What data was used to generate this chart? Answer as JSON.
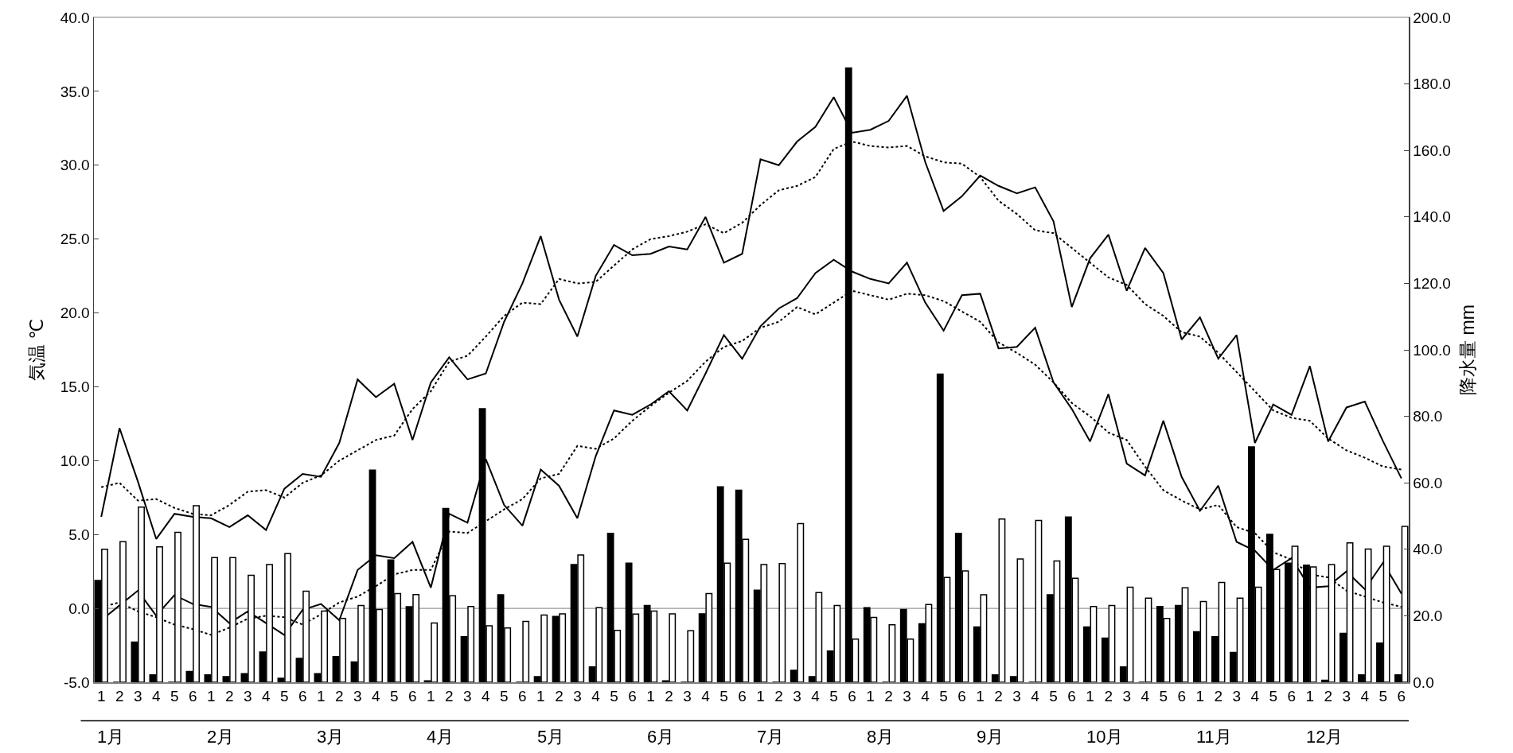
{
  "chart_data": {
    "type": "bar",
    "ylabel": "気温 ℃",
    "y2label": "降水量 mm",
    "categories": [
      "1",
      "2",
      "3",
      "4",
      "5",
      "6",
      "1",
      "2",
      "3",
      "4",
      "5",
      "6",
      "1",
      "2",
      "3",
      "4",
      "5",
      "6",
      "1",
      "2",
      "3",
      "4",
      "5",
      "6",
      "1",
      "2",
      "3",
      "4",
      "5",
      "6",
      "1",
      "2",
      "3",
      "4",
      "5",
      "6",
      "1",
      "2",
      "3",
      "4",
      "5",
      "6",
      "1",
      "2",
      "3",
      "4",
      "5",
      "6",
      "1",
      "2",
      "3",
      "4",
      "5",
      "6",
      "1",
      "2",
      "3",
      "4",
      "5",
      "6",
      "1",
      "2",
      "3",
      "4",
      "5",
      "6",
      "1",
      "2",
      "3",
      "4",
      "5",
      "6"
    ],
    "annotations": [
      "1月",
      "2月",
      "3月",
      "4月",
      "5月",
      "6月",
      "7月",
      "8月",
      "9月",
      "10月",
      "11月",
      "12月"
    ],
    "series": [
      {
        "axis": "y2",
        "color": "#000000",
        "values": [
          30.6,
          0,
          12.1,
          2.2,
          0,
          3.2,
          2.2,
          1.7,
          2.6,
          9.1,
          1.2,
          7.2,
          2.6,
          7.7,
          6.1,
          63.8,
          36.8,
          22.7,
          0.4,
          52.3,
          13.7,
          82.3,
          26.3,
          0,
          1.7,
          19.8,
          35.4,
          4.6,
          44.8,
          35.8,
          23.1,
          0.4,
          0,
          20.6,
          58.8,
          57.8,
          27.7,
          0,
          3.6,
          1.7,
          9.4,
          184.8,
          22.4,
          0,
          21.9,
          17.6,
          92.7,
          44.8,
          16.6,
          2.2,
          1.7,
          0,
          26.3,
          49.7,
          16.6,
          13.3,
          4.6,
          0,
          22.8,
          23.1,
          15.2,
          13.7,
          9.0,
          70.8,
          44.5,
          35.8,
          35.2,
          0.6,
          14.7,
          2.2,
          11.8,
          2.2
        ]
      },
      {
        "axis": "y2",
        "color": "#ffffff",
        "values": [
          40.0,
          42.3,
          52.7,
          40.7,
          45.1,
          53.1,
          37.5,
          37.5,
          32.2,
          35.4,
          38.7,
          27.4,
          21.4,
          19.2,
          23.1,
          21.9,
          26.7,
          26.4,
          17.8,
          26.0,
          22.8,
          17.0,
          16.3,
          18.3,
          20.2,
          20.6,
          38.3,
          22.4,
          15.6,
          20.5,
          21.4,
          20.6,
          15.5,
          26.7,
          35.8,
          43.0,
          35.4,
          35.7,
          47.7,
          27.0,
          23.1,
          13.0,
          19.5,
          17.3,
          13.0,
          23.4,
          31.5,
          33.5,
          26.3,
          49.1,
          37.1,
          48.7,
          36.5,
          31.3,
          22.8,
          23.1,
          28.6,
          25.3,
          19.2,
          28.4,
          24.3,
          30.0,
          25.3,
          28.6,
          33.9,
          40.9,
          34.7,
          35.4,
          41.9,
          40.1,
          40.9,
          46.9
        ]
      },
      {
        "type": "line",
        "axis": "y",
        "color": "#000000",
        "line_style": "solid",
        "values": [
          6.2,
          12.2,
          8.6,
          4.7,
          6.4,
          6.2,
          6.1,
          5.5,
          6.3,
          5.3,
          8.1,
          9.1,
          8.9,
          11.2,
          15.5,
          14.3,
          15.2,
          11.4,
          15.3,
          17.0,
          15.5,
          15.9,
          19.4,
          22.0,
          25.2,
          20.9,
          18.4,
          22.5,
          24.6,
          23.9,
          24.0,
          24.5,
          24.3,
          26.5,
          23.4,
          24.0,
          30.4,
          30.0,
          31.6,
          32.6,
          34.6,
          32.2,
          32.4,
          33.0,
          34.7,
          30.2,
          26.9,
          27.9,
          29.3,
          28.6,
          28.1,
          28.5,
          26.2,
          20.4,
          23.7,
          25.3,
          21.5,
          24.4,
          22.7,
          18.2,
          19.7,
          16.9,
          18.5,
          11.2,
          13.8,
          13.1,
          16.4,
          11.3,
          13.6,
          14.0,
          11.3,
          8.8
        ]
      },
      {
        "type": "line",
        "axis": "y",
        "color": "#000000",
        "line_style": "dotted",
        "values": [
          8.2,
          8.5,
          7.3,
          7.4,
          6.8,
          6.4,
          6.3,
          7.0,
          7.9,
          8.0,
          7.5,
          8.5,
          9.0,
          10.0,
          10.7,
          11.4,
          11.7,
          13.5,
          14.7,
          16.7,
          17.1,
          18.4,
          19.8,
          20.7,
          20.6,
          22.3,
          22.0,
          22.1,
          23.2,
          24.3,
          25.0,
          25.2,
          25.5,
          26.0,
          25.4,
          26.1,
          27.3,
          28.3,
          28.6,
          29.2,
          31.1,
          31.6,
          31.3,
          31.2,
          31.3,
          30.6,
          30.2,
          30.1,
          29.2,
          27.6,
          26.7,
          25.6,
          25.4,
          24.4,
          23.4,
          22.4,
          21.9,
          20.6,
          19.8,
          18.7,
          18.4,
          17.3,
          16.0,
          14.7,
          13.4,
          12.9,
          12.7,
          11.5,
          10.7,
          10.2,
          9.6,
          9.4
        ]
      },
      {
        "type": "line",
        "axis": "y",
        "color": "#000000",
        "line_style": "solid",
        "values": [
          -0.8,
          0.2,
          1.2,
          -0.5,
          0.9,
          0.3,
          0.1,
          -1.0,
          -0.2,
          -1.0,
          -1.8,
          -0.1,
          0.3,
          -0.8,
          2.6,
          3.6,
          3.4,
          4.5,
          1.4,
          6.4,
          5.8,
          10.1,
          7.0,
          5.6,
          9.4,
          8.3,
          6.1,
          10.3,
          13.4,
          13.1,
          13.8,
          14.7,
          13.4,
          15.9,
          18.5,
          16.9,
          19.1,
          20.3,
          21.0,
          22.7,
          23.6,
          22.8,
          22.3,
          22.0,
          23.4,
          20.7,
          18.8,
          21.2,
          21.3,
          17.6,
          17.7,
          19.0,
          15.3,
          13.5,
          11.3,
          14.5,
          9.8,
          9.0,
          12.7,
          8.9,
          6.6,
          8.3,
          4.5,
          3.9,
          2.6,
          3.4,
          1.4,
          1.5,
          2.5,
          1.3,
          3.1,
          1.0
        ]
      },
      {
        "type": "line",
        "axis": "y",
        "color": "#000000",
        "line_style": "dotted",
        "values": [
          0.1,
          0.4,
          -0.2,
          -0.6,
          -1.1,
          -1.4,
          -1.8,
          -1.3,
          -0.7,
          -0.5,
          -0.6,
          -1.1,
          -0.4,
          0.4,
          0.8,
          1.5,
          2.3,
          2.6,
          2.6,
          5.2,
          5.1,
          5.9,
          6.7,
          7.4,
          8.8,
          9.1,
          11.0,
          10.8,
          11.5,
          12.7,
          13.7,
          14.6,
          15.4,
          16.7,
          17.7,
          18.1,
          19.0,
          19.4,
          20.4,
          19.9,
          20.7,
          21.5,
          21.2,
          20.9,
          21.3,
          21.2,
          20.8,
          20.1,
          19.4,
          18.0,
          17.3,
          16.5,
          15.3,
          13.9,
          13.0,
          11.9,
          11.4,
          9.6,
          8.0,
          7.3,
          6.7,
          7.0,
          5.5,
          5.1,
          3.8,
          3.3,
          2.3,
          2.1,
          1.2,
          0.8,
          0.4,
          0.1
        ]
      }
    ],
    "ylim": [
      -5,
      40
    ],
    "yticks": [
      {
        "value": -5,
        "label": "-5.0"
      },
      {
        "value": 0,
        "label": "0.0"
      },
      {
        "value": 5,
        "label": "5.0"
      },
      {
        "value": 10,
        "label": "10.0"
      },
      {
        "value": 15,
        "label": "15.0"
      },
      {
        "value": 20,
        "label": "20.0"
      },
      {
        "value": 25,
        "label": "25.0"
      },
      {
        "value": 30,
        "label": "30.0"
      },
      {
        "value": 35,
        "label": "35.0"
      },
      {
        "value": 40,
        "label": "40.0"
      }
    ],
    "y2lim": [
      0,
      200
    ],
    "y2ticks": [
      {
        "value": 0,
        "label": "0.0"
      },
      {
        "value": 20,
        "label": "20.0"
      },
      {
        "value": 40,
        "label": "40.0"
      },
      {
        "value": 60,
        "label": "60.0"
      },
      {
        "value": 80,
        "label": "80.0"
      },
      {
        "value": 100,
        "label": "100.0"
      },
      {
        "value": 120,
        "label": "120.0"
      },
      {
        "value": 140,
        "label": "140.0"
      },
      {
        "value": 160,
        "label": "160.0"
      },
      {
        "value": 180,
        "label": "180.0"
      },
      {
        "value": 200,
        "label": "200.0"
      }
    ],
    "ref_lines": [
      {
        "axis": "y",
        "value": 0,
        "color": "#808080"
      }
    ],
    "grid": false
  }
}
